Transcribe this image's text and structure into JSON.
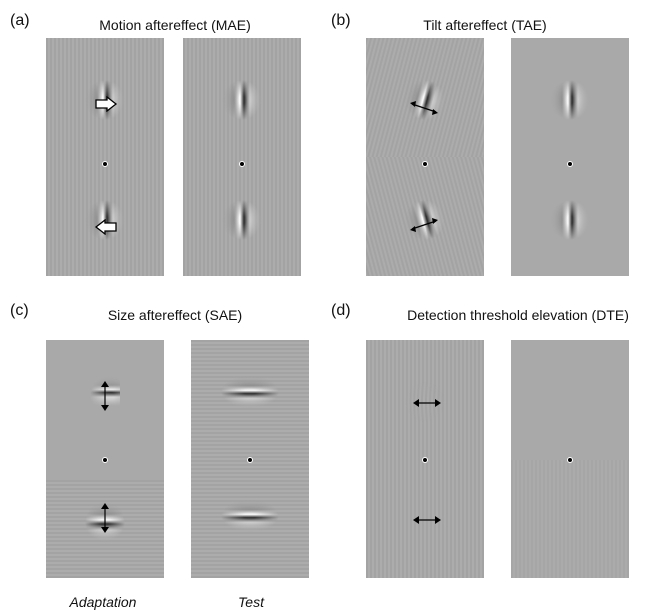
{
  "panels": [
    {
      "letter": "(a)",
      "title": "Motion aftereffect (MAE)"
    },
    {
      "letter": "(b)",
      "title": "Tilt aftereffect (TAE)"
    },
    {
      "letter": "(c)",
      "title": "Size aftereffect (SAE)"
    },
    {
      "letter": "(d)",
      "title": "Detection threshold elevation (DTE)"
    }
  ],
  "footer": {
    "adaptation": "Adaptation",
    "test": "Test"
  },
  "colors": {
    "background": "#a9a9a9",
    "fixation": "#000000",
    "arrow": "#000000"
  },
  "icons": {
    "motion": "hollow-arrow-icon",
    "tilt": "double-arrow-icon",
    "size": "double-arrow-icon",
    "contrast": "double-arrow-icon"
  }
}
